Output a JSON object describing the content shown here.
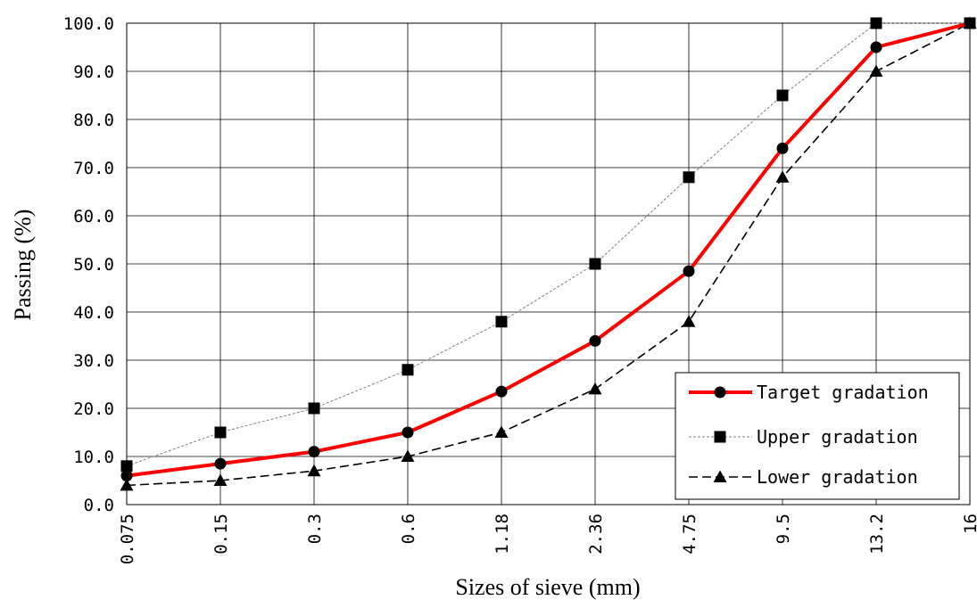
{
  "chart_data": {
    "type": "line",
    "title": "",
    "xlabel": "Sizes of sieve (mm)",
    "ylabel": "Passing (%)",
    "categories": [
      "0.075",
      "0.15",
      "0.3",
      "0.6",
      "1.18",
      "2.36",
      "4.75",
      "9.5",
      "13.2",
      "16"
    ],
    "y_ticks": [
      "0.0",
      "10.0",
      "20.0",
      "30.0",
      "40.0",
      "50.0",
      "60.0",
      "70.0",
      "80.0",
      "90.0",
      "100.0"
    ],
    "ylim": [
      0,
      100
    ],
    "grid": true,
    "legend_position": "bottom-right",
    "series": [
      {
        "name": "Target gradation",
        "values": [
          6,
          8.5,
          11,
          15,
          23.5,
          34,
          48.5,
          74,
          95,
          100
        ],
        "color": "#ff0000",
        "marker": "circle",
        "style": "solid"
      },
      {
        "name": "Upper gradation",
        "values": [
          8,
          15,
          20,
          28,
          38,
          50,
          68,
          85,
          100,
          100
        ],
        "color": "#7f7f7f",
        "marker": "square",
        "style": "dotted"
      },
      {
        "name": "Lower gradation",
        "values": [
          4,
          5,
          7,
          10,
          15,
          24,
          38,
          68,
          90,
          100
        ],
        "color": "#000000",
        "marker": "triangle",
        "style": "dashed"
      }
    ]
  }
}
